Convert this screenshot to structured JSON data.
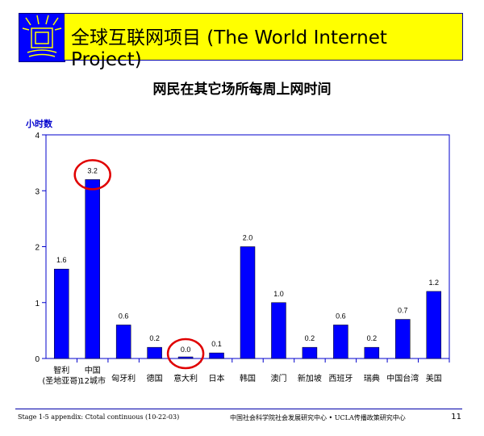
{
  "header": {
    "title": "全球互联网项目 (The World Internet Project)",
    "logo_icon": "tv-screen-icon"
  },
  "chart_data": {
    "type": "bar",
    "title": "网民在其它场所每周上网时间",
    "ylabel": "小时数",
    "ylim": [
      0,
      4
    ],
    "yticks": [
      "0",
      "1",
      "2",
      "3",
      "4"
    ],
    "categories": [
      "智利\n(圣地亚哥)",
      "中国\n12城市",
      "匈牙利",
      "德国",
      "意大利",
      "日本",
      "韩国",
      "澳门",
      "新加坡",
      "西班牙",
      "瑞典",
      "中国台湾",
      "美国"
    ],
    "values": [
      1.6,
      3.2,
      0.6,
      0.2,
      0.0,
      0.1,
      2.0,
      1.0,
      0.2,
      0.6,
      0.2,
      0.7,
      1.2
    ],
    "value_labels": [
      "1.6",
      "3.2",
      "0.6",
      "0.2",
      "0.0",
      "0.1",
      "2.0",
      "1.0",
      "0.2",
      "0.6",
      "0.2",
      "0.7",
      "1.2"
    ],
    "highlighted": [
      "中国\n12城市",
      "意大利"
    ],
    "colors": {
      "bar": "#0000ff",
      "highlight_circle": "#e00000",
      "axis": "#0000cc"
    },
    "grid": false
  },
  "footer": {
    "left": "Stage 1-5 appendix: Ctotal continuous (10-22-03)",
    "center": "中国社会科学院社会发展研究中心 • UCLA传播政策研究中心",
    "page": "11"
  }
}
